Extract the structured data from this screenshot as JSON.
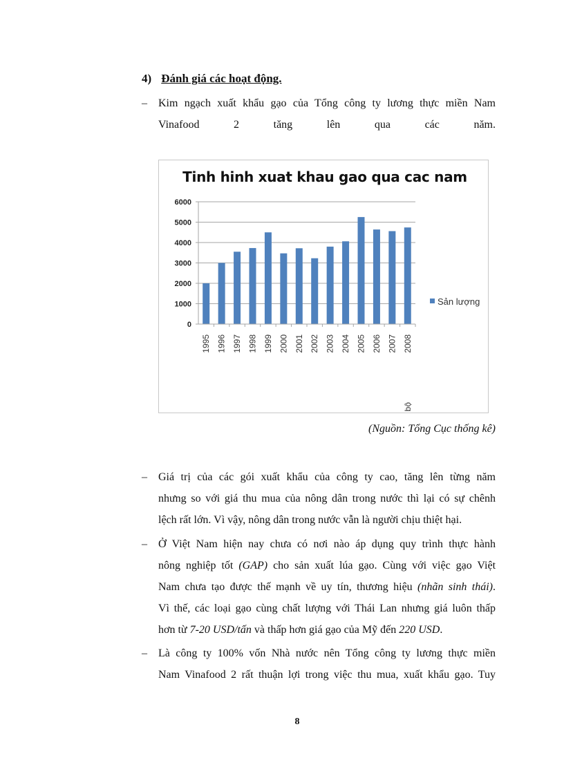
{
  "heading": {
    "number": "4)",
    "title": "Đánh giá các hoạt động."
  },
  "intro": {
    "dash": "–",
    "lines": [
      [
        {
          "t": "Kim ngạch xuất khẩu gạo của Tổng công ty lương thực miền Nam"
        }
      ],
      [
        {
          "t": "Vinafood 2 tăng lên qua các năm."
        }
      ]
    ]
  },
  "chart_data": {
    "type": "bar",
    "title": "Tinh hinh xuat khau gao qua cac nam",
    "categories": [
      "1995",
      "1996",
      "1997",
      "1998",
      "1999",
      "2000",
      "2001",
      "2002",
      "2003",
      "2004",
      "2005",
      "2006",
      "2007",
      "2008"
    ],
    "category_note": {
      "2008": "Sơ bộ"
    },
    "series": [
      {
        "name": "Sản lượng",
        "values": [
          2000,
          3000,
          3550,
          3730,
          4500,
          3470,
          3720,
          3230,
          3800,
          4060,
          5250,
          4640,
          4560,
          4740
        ],
        "color": "#4f81bd"
      }
    ],
    "ylim": [
      0,
      6000
    ],
    "yticks": [
      "0",
      "1000",
      "2000",
      "3000",
      "4000",
      "5000",
      "6000"
    ],
    "grid": true,
    "legend": "right"
  },
  "source": "(Nguồn: Tổng Cục thống kê)",
  "paragraphs": [
    {
      "dash": "–",
      "lines": [
        [
          {
            "t": "Giá trị của các gói xuất khẩu của công ty cao, tăng lên từng năm"
          }
        ],
        [
          {
            "t": "nhưng so với giá thu mua của nông dân trong nước thì lại có sự chênh"
          }
        ],
        [
          {
            "t": "lệch rất lớn. Vì vậy, nông dân trong nước vẫn là người chịu thiệt hại."
          }
        ]
      ]
    },
    {
      "dash": "–",
      "lines": [
        [
          {
            "t": "Ở Việt Nam hiện nay chưa có nơi nào áp dụng quy trình thực hành"
          }
        ],
        [
          {
            "t": "nông nghiệp tốt "
          },
          {
            "t": "(GAP)",
            "i": true
          },
          {
            "t": " cho sản xuất lúa gạo. Cùng với việc gạo Việt"
          }
        ],
        [
          {
            "t": "Nam chưa tạo được thế mạnh về uy tín, thương hiệu "
          },
          {
            "t": "(nhãn sinh thái)",
            "i": true
          },
          {
            "t": "."
          }
        ],
        [
          {
            "t": "Vì thế, các loại gạo cùng chất lượng với Thái Lan nhưng giá luôn thấp"
          }
        ],
        [
          {
            "t": "hơn từ "
          },
          {
            "t": "7-20 USD/tấn",
            "i": true
          },
          {
            "t": " và thấp hơn giá gạo của Mỹ đến "
          },
          {
            "t": "220 USD",
            "i": true
          },
          {
            "t": "."
          }
        ]
      ]
    },
    {
      "dash": "–",
      "lines": [
        [
          {
            "t": "Là công ty 100% vốn Nhà nước nên Tổng công ty lương thực miền"
          }
        ],
        [
          {
            "t": "Nam Vinafood 2 rất thuận lợi trong việc thu mua, xuất khẩu gạo. Tuy"
          }
        ]
      ]
    }
  ],
  "page_number": "8"
}
